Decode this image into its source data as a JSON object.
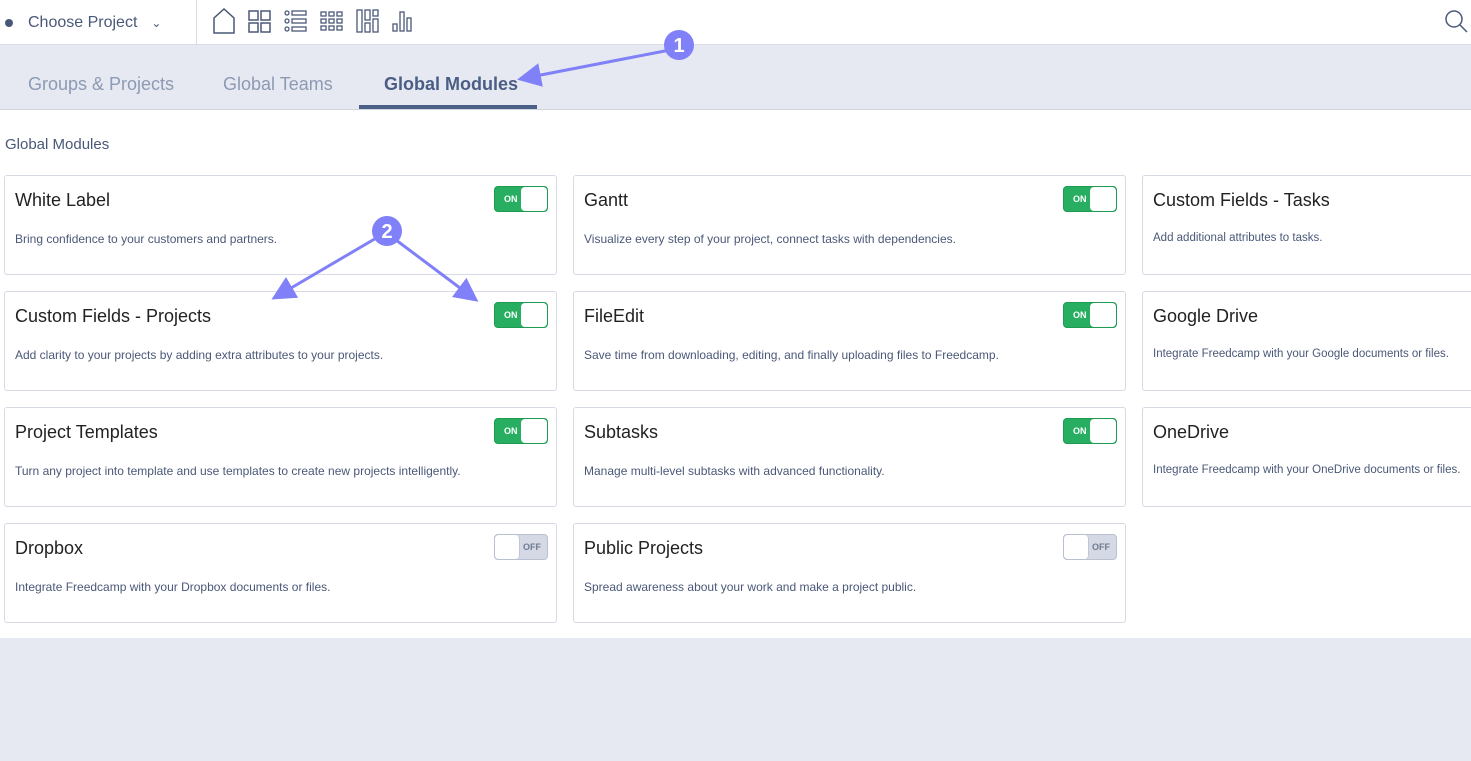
{
  "topbar": {
    "project_label": "Choose Project",
    "icons": [
      "home-icon",
      "board-icon",
      "list-icon",
      "grid-icon",
      "kanban-icon",
      "chart-icon",
      "search-icon"
    ]
  },
  "tabs": [
    {
      "label": "Groups & Projects",
      "active": false
    },
    {
      "label": "Global Teams",
      "active": false
    },
    {
      "label": "Global Modules",
      "active": true
    }
  ],
  "section_title": "Global Modules",
  "modules": [
    {
      "title": "White Label",
      "desc": "Bring confidence to your customers and partners.",
      "state": "ON"
    },
    {
      "title": "Gantt",
      "desc": "Visualize every step of your project, connect tasks with dependencies.",
      "state": "ON"
    },
    {
      "title": "Custom Fields - Tasks",
      "desc": "Add additional attributes to tasks.",
      "state": ""
    },
    {
      "title": "Custom Fields - Projects",
      "desc": "Add clarity to your projects by adding extra attributes to your projects.",
      "state": "ON"
    },
    {
      "title": "FileEdit",
      "desc": "Save time from downloading, editing, and finally uploading files to Freedcamp.",
      "state": "ON"
    },
    {
      "title": "Google Drive",
      "desc": "Integrate Freedcamp with your Google documents or files.",
      "state": ""
    },
    {
      "title": "Project Templates",
      "desc": "Turn any project into template and use templates to create new projects intelligently.",
      "state": "ON"
    },
    {
      "title": "Subtasks",
      "desc": "Manage multi-level subtasks with advanced functionality.",
      "state": "ON"
    },
    {
      "title": "OneDrive",
      "desc": "Integrate Freedcamp with your OneDrive documents or files.",
      "state": ""
    },
    {
      "title": "Dropbox",
      "desc": "Integrate Freedcamp with your Dropbox documents or files.",
      "state": "OFF"
    },
    {
      "title": "Public Projects",
      "desc": "Spread awareness about your work and make a project public.",
      "state": "OFF"
    }
  ],
  "annotations": {
    "marker1": "1",
    "marker2": "2",
    "color": "#8080f8"
  },
  "colors": {
    "on": "#27ae60",
    "off": "#d4d9e5",
    "accent": "#4a6088"
  }
}
